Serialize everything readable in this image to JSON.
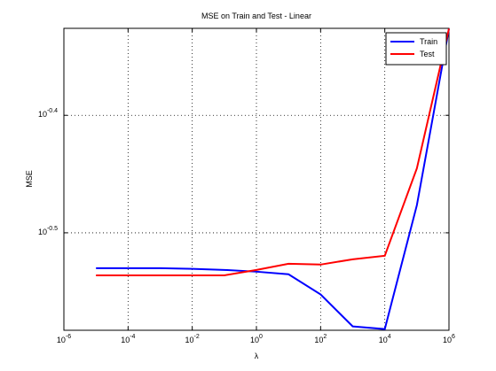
{
  "chart_data": {
    "type": "line",
    "title": "MSE on Train and Test - Linear",
    "x_label": "λ",
    "y_label": "MSE",
    "x": [
      1e-05,
      0.0001,
      0.001,
      0.01,
      0.1,
      1,
      10,
      100,
      1000,
      10000,
      100000,
      1000000
    ],
    "series": [
      {
        "name": "Train",
        "color": "#0000ff",
        "values": [
          0.295,
          0.295,
          0.295,
          0.2946,
          0.294,
          0.293,
          0.2915,
          0.2802,
          0.2632,
          0.2618,
          0.3338,
          0.4718
        ]
      },
      {
        "name": "Test",
        "color": "#ff0000",
        "values": [
          0.2909,
          0.2909,
          0.2909,
          0.2909,
          0.2909,
          0.294,
          0.2976,
          0.2971,
          0.3002,
          0.3023,
          0.3588,
          0.4718
        ]
      }
    ],
    "xscale": "log",
    "yscale": "log",
    "xlim": [
      1e-06,
      1000000.0
    ],
    "ylim": [
      0.2612,
      0.4721
    ],
    "xticks": [
      {
        "value": 1e-06,
        "label": "10",
        "exponent": "-6"
      },
      {
        "value": 0.0001,
        "label": "10",
        "exponent": "-4"
      },
      {
        "value": 0.01,
        "label": "10",
        "exponent": "-2"
      },
      {
        "value": 1,
        "label": "10",
        "exponent": "0"
      },
      {
        "value": 100,
        "label": "10",
        "exponent": "2"
      },
      {
        "value": 10000,
        "label": "10",
        "exponent": "4"
      },
      {
        "value": 1000000,
        "label": "10",
        "exponent": "6"
      }
    ],
    "yticks": [
      {
        "value": 0.3162,
        "label": "10",
        "exponent": "-0.5"
      },
      {
        "value": 0.3981,
        "label": "10",
        "exponent": "-0.4"
      }
    ],
    "grid": true,
    "legend": "top-right"
  }
}
